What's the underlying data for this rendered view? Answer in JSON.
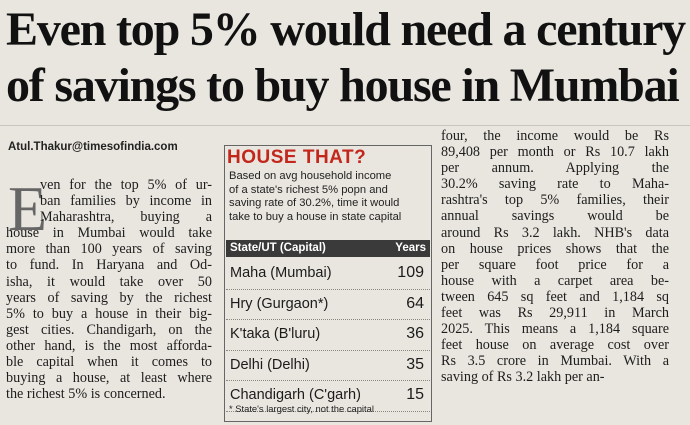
{
  "headline": {
    "line1": "Even top 5% would need a century",
    "line2": "of savings to buy house in Mumbai"
  },
  "byline": "Atul.Thakur@timesofindia.com",
  "left_column": {
    "dropcap": "E",
    "lines": [
      "ven for the top 5% of ur-",
      "ban families by income in",
      "Maharashtra, buying a",
      "house in Mumbai would take",
      "more than 100 years of saving",
      "to fund. In Haryana and Od-",
      "isha, it would take over 50",
      "years of saving by the richest",
      "5% to buy a house in their big-",
      "gest cities. Chandigarh, on the",
      "other hand, is the most afforda-",
      "ble capital when it comes to",
      "buying a house, at least where",
      "the richest 5% is concerned."
    ]
  },
  "box": {
    "title": "HOUSE THAT?",
    "intro": [
      "Based on avg household income",
      "of a state's richest 5% popn and",
      "saving rate of 30.2%, time it would",
      "take to buy a house in state capital"
    ],
    "col_state": "State/UT (Capital)",
    "col_years": "Years",
    "rows": [
      {
        "state": "Maha (Mumbai)",
        "years": "109"
      },
      {
        "state": "Hry (Gurgaon*)",
        "years": "64"
      },
      {
        "state": "K'taka (B'luru)",
        "years": "36"
      },
      {
        "state": "Delhi (Delhi)",
        "years": "35"
      },
      {
        "state": "Chandigarh (C'garh)",
        "years": "15"
      }
    ],
    "footnote": "* State's largest city, not the capital"
  },
  "right_column": {
    "lines": [
      "four, the income would be Rs",
      "89,408 per month or Rs 10.7 lakh",
      "per annum. Applying the",
      "30.2% saving rate to Maha-",
      "rashtra's top 5% families, their",
      "annual savings would be",
      "around Rs 3.2 lakh. NHB's data",
      "on house prices shows that the",
      "per square foot price for a",
      "house with a carpet area be-",
      "tween 645 sq feet and 1,184 sq",
      "feet was Rs 29,911 in March",
      "2025. This means a 1,184 square",
      "feet house on average cost over",
      "Rs 3.5 crore in Mumbai. With a",
      "saving of Rs 3.2 lakh per an-"
    ]
  }
}
